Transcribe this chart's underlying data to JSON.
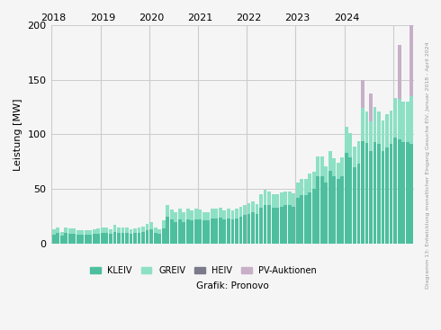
{
  "title": "",
  "ylabel": "Leistung [MW]",
  "xlabel": "Grafik: Pronovo",
  "ylim": [
    0,
    200
  ],
  "yticks": [
    0,
    50,
    100,
    150,
    200
  ],
  "colors": {
    "KLEIV": "#4dbf9e",
    "GREIV": "#8de0c4",
    "HEIV": "#7a7a8a",
    "PV-Auktionen": "#c8afc8"
  },
  "background_color": "#f5f5f5",
  "grid_color": "#cccccc",
  "year_labels": [
    "2018",
    "2019",
    "2020",
    "2021",
    "2022",
    "2023",
    "2024",
    ""
  ],
  "year_positions": [
    0,
    12,
    24,
    36,
    48,
    60,
    72,
    84
  ],
  "kleiv": [
    8,
    10,
    7,
    10,
    9,
    9,
    8,
    8,
    8,
    8,
    9,
    9,
    10,
    10,
    9,
    11,
    10,
    10,
    10,
    9,
    10,
    10,
    11,
    12,
    13,
    10,
    9,
    14,
    25,
    22,
    20,
    22,
    20,
    22,
    21,
    22,
    22,
    21,
    21,
    23,
    23,
    24,
    22,
    23,
    22,
    23,
    25,
    26,
    27,
    29,
    27,
    33,
    35,
    35,
    33,
    33,
    34,
    35,
    35,
    34,
    42,
    44,
    44,
    47,
    50,
    62,
    62,
    56,
    67,
    62,
    59,
    62,
    83,
    79,
    70,
    73,
    94,
    92,
    85,
    93,
    91,
    85,
    88,
    91,
    97,
    95,
    93,
    93,
    91
  ],
  "greiv": [
    5,
    5,
    4,
    5,
    5,
    5,
    4,
    4,
    4,
    4,
    4,
    5,
    5,
    5,
    4,
    6,
    5,
    5,
    5,
    4,
    4,
    5,
    5,
    6,
    7,
    5,
    4,
    7,
    10,
    9,
    9,
    10,
    9,
    10,
    9,
    10,
    9,
    8,
    8,
    9,
    9,
    9,
    8,
    9,
    8,
    9,
    9,
    9,
    10,
    10,
    9,
    12,
    14,
    13,
    12,
    12,
    13,
    13,
    13,
    12,
    14,
    15,
    15,
    17,
    16,
    18,
    18,
    15,
    18,
    16,
    15,
    17,
    24,
    22,
    19,
    21,
    30,
    29,
    27,
    32,
    30,
    28,
    30,
    31,
    36,
    37,
    37,
    37,
    44
  ],
  "heiv": [
    0,
    0,
    0,
    0,
    0,
    0,
    0,
    0,
    0,
    0,
    0,
    0,
    0,
    0,
    0,
    0,
    0,
    0,
    0,
    0,
    0,
    0,
    0,
    0,
    0,
    0,
    0,
    0,
    0,
    0,
    0,
    0,
    0,
    0,
    0,
    0,
    0,
    0,
    0,
    0,
    0,
    0,
    0,
    0,
    0,
    0,
    0,
    0,
    0,
    0,
    0,
    0,
    0,
    0,
    0,
    0,
    0,
    0,
    0,
    0,
    0,
    0,
    0,
    0,
    0,
    0,
    0,
    0,
    0,
    0,
    0,
    0,
    0,
    0,
    0,
    0,
    0,
    0,
    0,
    0,
    0,
    0,
    0,
    0,
    0,
    0,
    0,
    0,
    0
  ],
  "pv_auktionen": [
    0,
    0,
    0,
    0,
    0,
    0,
    0,
    0,
    0,
    0,
    0,
    0,
    0,
    0,
    0,
    0,
    0,
    0,
    0,
    0,
    0,
    0,
    0,
    0,
    0,
    0,
    0,
    0,
    0,
    0,
    0,
    0,
    0,
    0,
    0,
    0,
    0,
    0,
    0,
    0,
    0,
    0,
    0,
    0,
    0,
    0,
    0,
    0,
    0,
    0,
    0,
    0,
    0,
    0,
    0,
    0,
    0,
    0,
    0,
    0,
    0,
    0,
    0,
    0,
    0,
    0,
    0,
    0,
    0,
    0,
    0,
    0,
    0,
    0,
    0,
    0,
    26,
    0,
    25,
    0,
    0,
    0,
    0,
    0,
    0,
    50,
    0,
    0,
    65
  ],
  "source_text": "Diagramm 13: Entwicklung monatlicher Eingang Gesuche EIV, Januar 2018 - April 2024"
}
